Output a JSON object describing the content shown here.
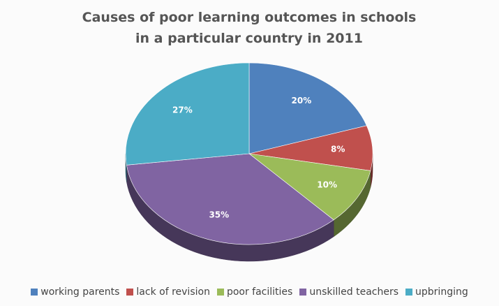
{
  "chart_data": {
    "type": "pie",
    "title": "Causes of poor learning outcomes in schools in a particular country in 2011",
    "categories": [
      "working parents",
      "lack of revision",
      "poor facilities",
      "unskilled teachers",
      "upbringing"
    ],
    "values": [
      20,
      8,
      10,
      35,
      27
    ],
    "value_labels": [
      "20%",
      "8%",
      "10%",
      "35%",
      "27%"
    ],
    "colors": [
      "#4f81bd",
      "#c0504d",
      "#9bbb59",
      "#8064a2",
      "#4bacc6"
    ],
    "legend": "bottom"
  }
}
